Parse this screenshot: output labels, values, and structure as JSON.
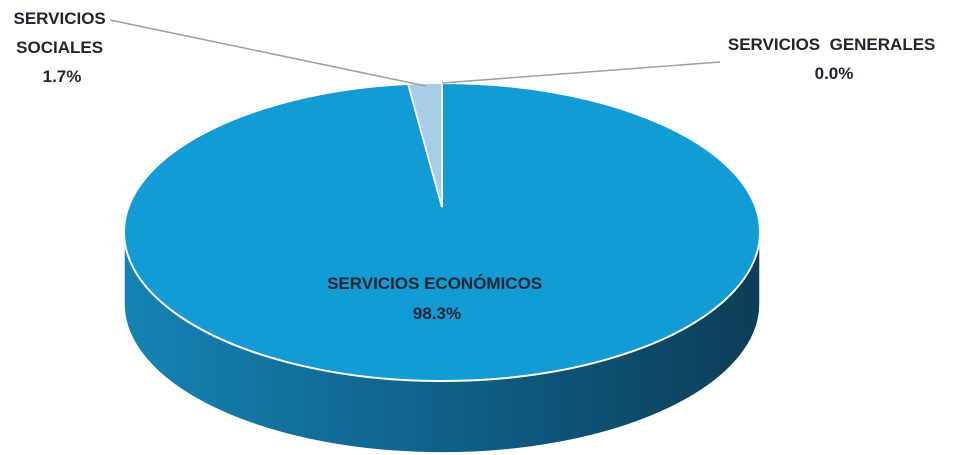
{
  "chart_data": {
    "type": "pie",
    "style": "3d",
    "slices": [
      {
        "label_lines": [
          "SERVICIOS ECONÓMICOS"
        ],
        "value": 98.3,
        "value_text": "98.3%",
        "color": "#129bd4"
      },
      {
        "label_lines": [
          "SERVICIOS",
          "SOCIALES"
        ],
        "value": 1.7,
        "value_text": "1.7%",
        "color": "#a9cde6"
      },
      {
        "label_lines": [
          "SERVICIOS  GENERALES"
        ],
        "value": 0.0,
        "value_text": "0.0%",
        "color": "#7fb6d9"
      }
    ],
    "colors": {
      "side_dark": "#0c3d57",
      "side_light": "#1583b4",
      "leader_line": "#a0a0a0",
      "label_text": "#1f2430"
    }
  }
}
